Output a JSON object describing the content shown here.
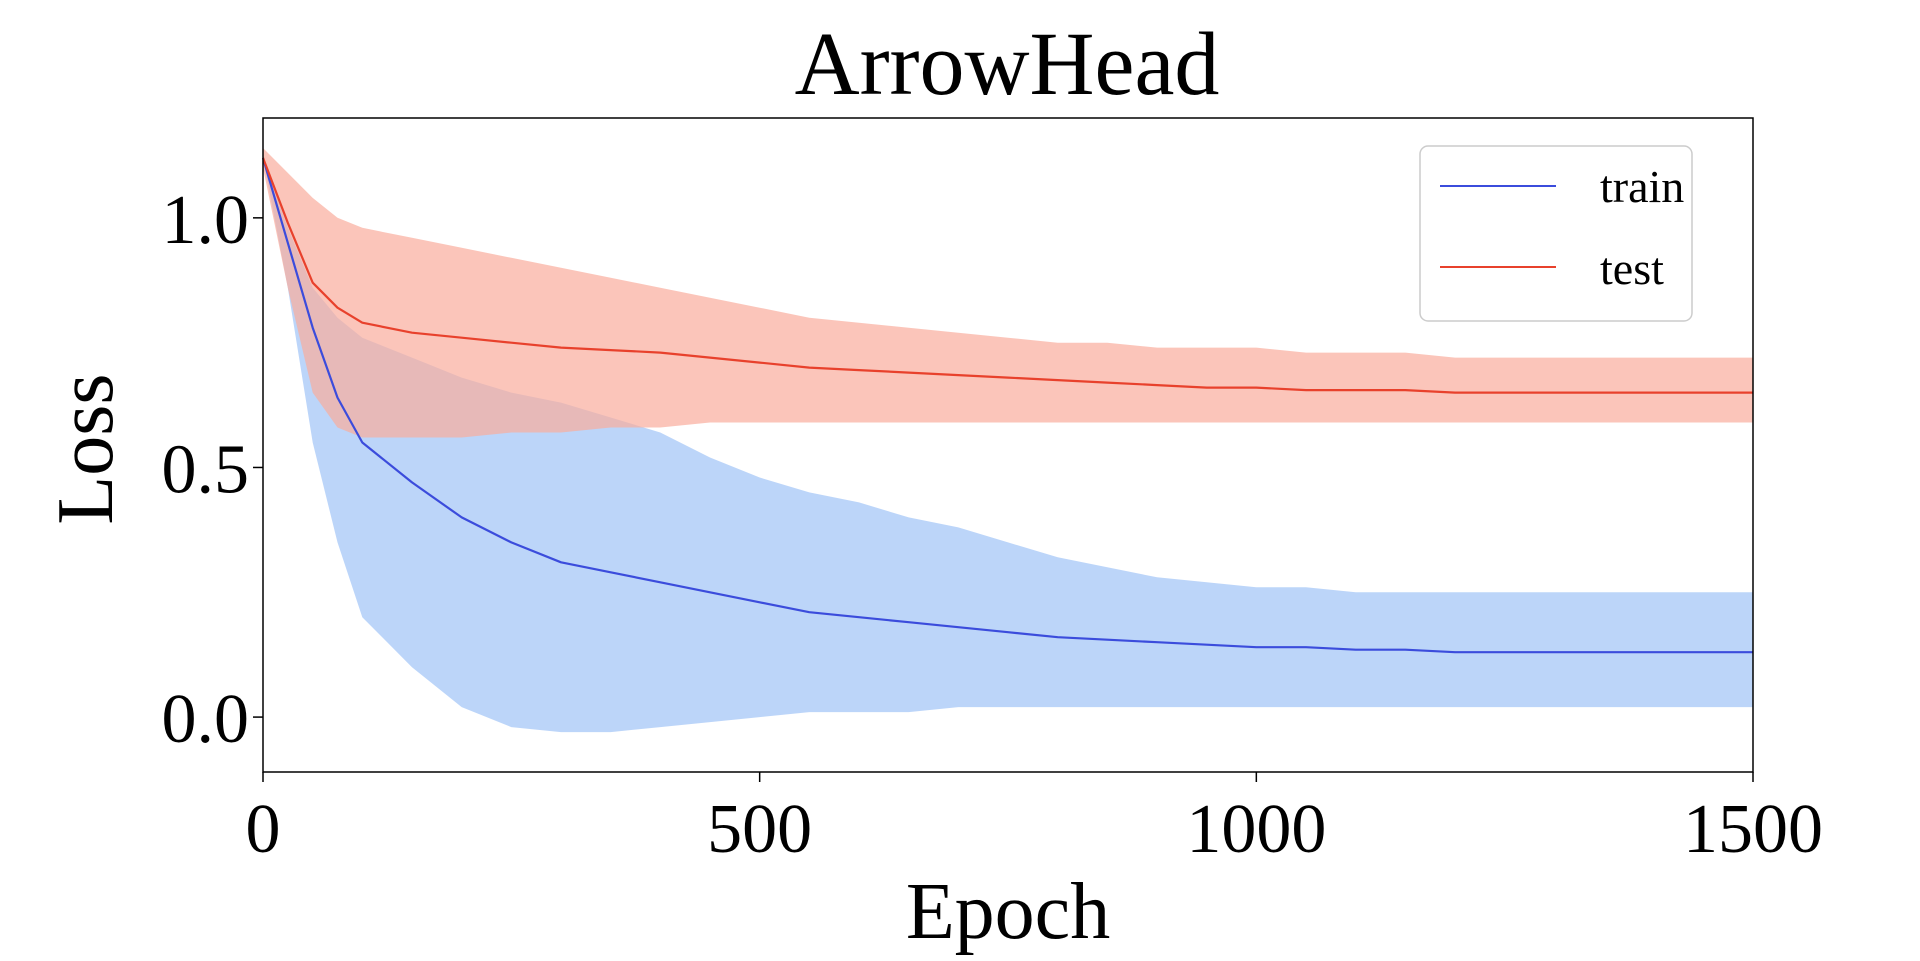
{
  "chart_data": {
    "type": "line",
    "title": "ArrowHead",
    "xlabel": "Epoch",
    "ylabel": "Loss",
    "xlim": [
      0,
      1500
    ],
    "ylim": [
      -0.11,
      1.2
    ],
    "xticks": [
      0,
      500,
      1000,
      1500
    ],
    "xtick_labels": [
      "0",
      "500",
      "1000",
      "1500"
    ],
    "yticks": [
      0.0,
      0.5,
      1.0
    ],
    "ytick_labels": [
      "0.0",
      "0.5",
      "1.0"
    ],
    "grid": false,
    "legend_position": "top-right",
    "x": [
      0,
      25,
      50,
      75,
      100,
      150,
      200,
      250,
      300,
      350,
      400,
      450,
      500,
      550,
      600,
      650,
      700,
      750,
      800,
      850,
      900,
      950,
      1000,
      1050,
      1100,
      1150,
      1200,
      1250,
      1300,
      1350,
      1400,
      1450,
      1500
    ],
    "series": [
      {
        "name": "train",
        "color": "#3b4cdc",
        "band_color": "#9fc3f7",
        "values": [
          1.12,
          0.95,
          0.78,
          0.64,
          0.55,
          0.47,
          0.4,
          0.35,
          0.31,
          0.29,
          0.27,
          0.25,
          0.23,
          0.21,
          0.2,
          0.19,
          0.18,
          0.17,
          0.16,
          0.155,
          0.15,
          0.145,
          0.14,
          0.14,
          0.135,
          0.135,
          0.13,
          0.13,
          0.13,
          0.13,
          0.13,
          0.13,
          0.13
        ],
        "upper": [
          1.12,
          0.98,
          0.86,
          0.8,
          0.76,
          0.72,
          0.68,
          0.65,
          0.63,
          0.6,
          0.57,
          0.52,
          0.48,
          0.45,
          0.43,
          0.4,
          0.38,
          0.35,
          0.32,
          0.3,
          0.28,
          0.27,
          0.26,
          0.26,
          0.25,
          0.25,
          0.25,
          0.25,
          0.25,
          0.25,
          0.25,
          0.25,
          0.25
        ],
        "lower": [
          1.12,
          0.86,
          0.55,
          0.35,
          0.2,
          0.1,
          0.02,
          -0.02,
          -0.03,
          -0.03,
          -0.02,
          -0.01,
          0.0,
          0.01,
          0.01,
          0.01,
          0.02,
          0.02,
          0.02,
          0.02,
          0.02,
          0.02,
          0.02,
          0.02,
          0.02,
          0.02,
          0.02,
          0.02,
          0.02,
          0.02,
          0.02,
          0.02,
          0.02
        ]
      },
      {
        "name": "test",
        "color": "#e8412c",
        "band_color": "#f9ac9c",
        "values": [
          1.12,
          0.99,
          0.87,
          0.82,
          0.79,
          0.77,
          0.76,
          0.75,
          0.74,
          0.735,
          0.73,
          0.72,
          0.71,
          0.7,
          0.695,
          0.69,
          0.685,
          0.68,
          0.675,
          0.67,
          0.665,
          0.66,
          0.66,
          0.655,
          0.655,
          0.655,
          0.65,
          0.65,
          0.65,
          0.65,
          0.65,
          0.65,
          0.65
        ],
        "upper": [
          1.14,
          1.09,
          1.04,
          1.0,
          0.98,
          0.96,
          0.94,
          0.92,
          0.9,
          0.88,
          0.86,
          0.84,
          0.82,
          0.8,
          0.79,
          0.78,
          0.77,
          0.76,
          0.75,
          0.75,
          0.74,
          0.74,
          0.74,
          0.73,
          0.73,
          0.73,
          0.72,
          0.72,
          0.72,
          0.72,
          0.72,
          0.72,
          0.72
        ],
        "lower": [
          1.1,
          0.86,
          0.65,
          0.58,
          0.56,
          0.56,
          0.56,
          0.57,
          0.57,
          0.58,
          0.58,
          0.59,
          0.59,
          0.59,
          0.59,
          0.59,
          0.59,
          0.59,
          0.59,
          0.59,
          0.59,
          0.59,
          0.59,
          0.59,
          0.59,
          0.59,
          0.59,
          0.59,
          0.59,
          0.59,
          0.59,
          0.59,
          0.59
        ]
      }
    ]
  }
}
